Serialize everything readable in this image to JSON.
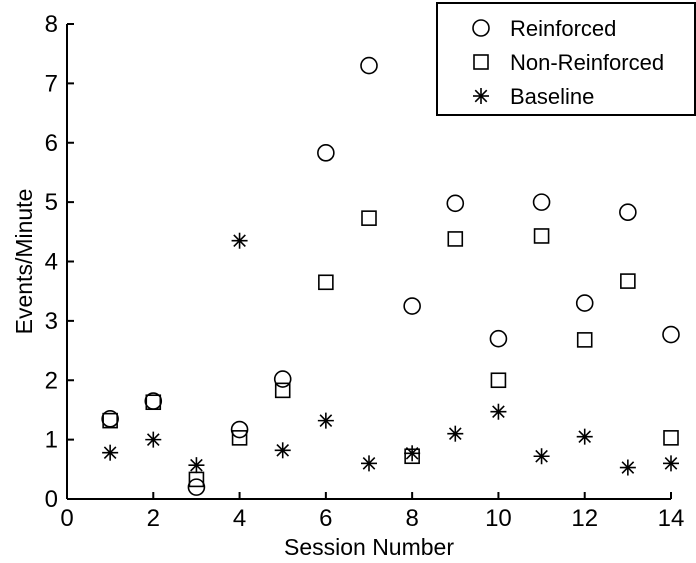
{
  "chart_data": {
    "type": "scatter",
    "title": "",
    "xlabel": "Session Number",
    "ylabel": "Events/Minute",
    "xlim": [
      0,
      14
    ],
    "ylim": [
      0,
      8
    ],
    "xticks": [
      "0",
      "2",
      "4",
      "6",
      "8",
      "10",
      "12",
      "14"
    ],
    "yticks": [
      "0",
      "1",
      "2",
      "3",
      "4",
      "5",
      "6",
      "7",
      "8"
    ],
    "grid": false,
    "legend_position": "top-right",
    "series": [
      {
        "name": "Reinforced",
        "marker": "circle",
        "color": "#000000",
        "x": [
          1,
          2,
          3,
          4,
          5,
          6,
          7,
          8,
          9,
          10,
          11,
          12,
          13,
          14
        ],
        "y": [
          1.35,
          1.65,
          0.2,
          1.17,
          2.02,
          5.83,
          7.3,
          3.25,
          4.98,
          2.7,
          5.0,
          3.3,
          4.83,
          2.77
        ]
      },
      {
        "name": "Non-Reinforced",
        "marker": "square",
        "color": "#000000",
        "x": [
          1,
          2,
          3,
          4,
          5,
          6,
          7,
          8,
          9,
          10,
          11,
          12,
          13,
          14
        ],
        "y": [
          1.32,
          1.63,
          0.33,
          1.03,
          1.83,
          3.65,
          4.73,
          0.72,
          4.38,
          2.0,
          4.43,
          2.68,
          3.67,
          1.03
        ]
      },
      {
        "name": "Baseline",
        "marker": "asterisk",
        "color": "#000000",
        "x": [
          1,
          2,
          3,
          4,
          5,
          6,
          7,
          8,
          9,
          10,
          11,
          12,
          13,
          14
        ],
        "y": [
          0.78,
          1.0,
          0.57,
          4.35,
          0.82,
          1.32,
          0.6,
          0.77,
          1.1,
          1.47,
          0.72,
          1.05,
          0.53,
          0.6
        ]
      }
    ]
  }
}
